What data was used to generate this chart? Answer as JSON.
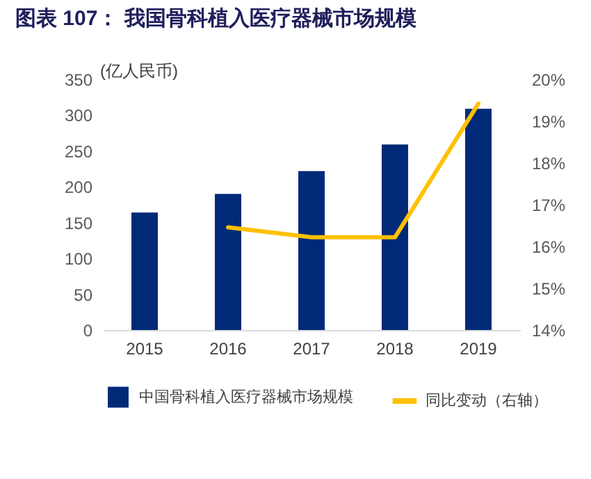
{
  "chart_data": {
    "type": "bar",
    "title": "图表 107： 我国骨科植入医疗器械市场规模",
    "ylabel": "(亿人民币)",
    "categories": [
      "2015",
      "2016",
      "2017",
      "2018",
      "2019"
    ],
    "series": [
      {
        "name": "中国骨科植入医疗器械市场规模",
        "color": "#002a78",
        "values": [
          164,
          190,
          222,
          259,
          309
        ]
      },
      {
        "name": "同比变动（右轴）",
        "type": "line",
        "axis": "y2",
        "color": "#ffc000",
        "values": [
          null,
          16.46,
          16.22,
          16.22,
          19.42
        ]
      }
    ],
    "ylim": [
      0,
      350
    ],
    "yticks": [
      0,
      50,
      100,
      150,
      200,
      250,
      300,
      350
    ],
    "y2lim": [
      14,
      20
    ],
    "y2ticks": [
      {
        "value": 14,
        "label": "14%"
      },
      {
        "value": 15,
        "label": "15%"
      },
      {
        "value": 16,
        "label": "16%"
      },
      {
        "value": 17,
        "label": "17%"
      },
      {
        "value": 18,
        "label": "18%"
      },
      {
        "value": 19,
        "label": "19%"
      },
      {
        "value": 20,
        "label": "20%"
      }
    ],
    "grid": false,
    "legend": "bottom"
  }
}
